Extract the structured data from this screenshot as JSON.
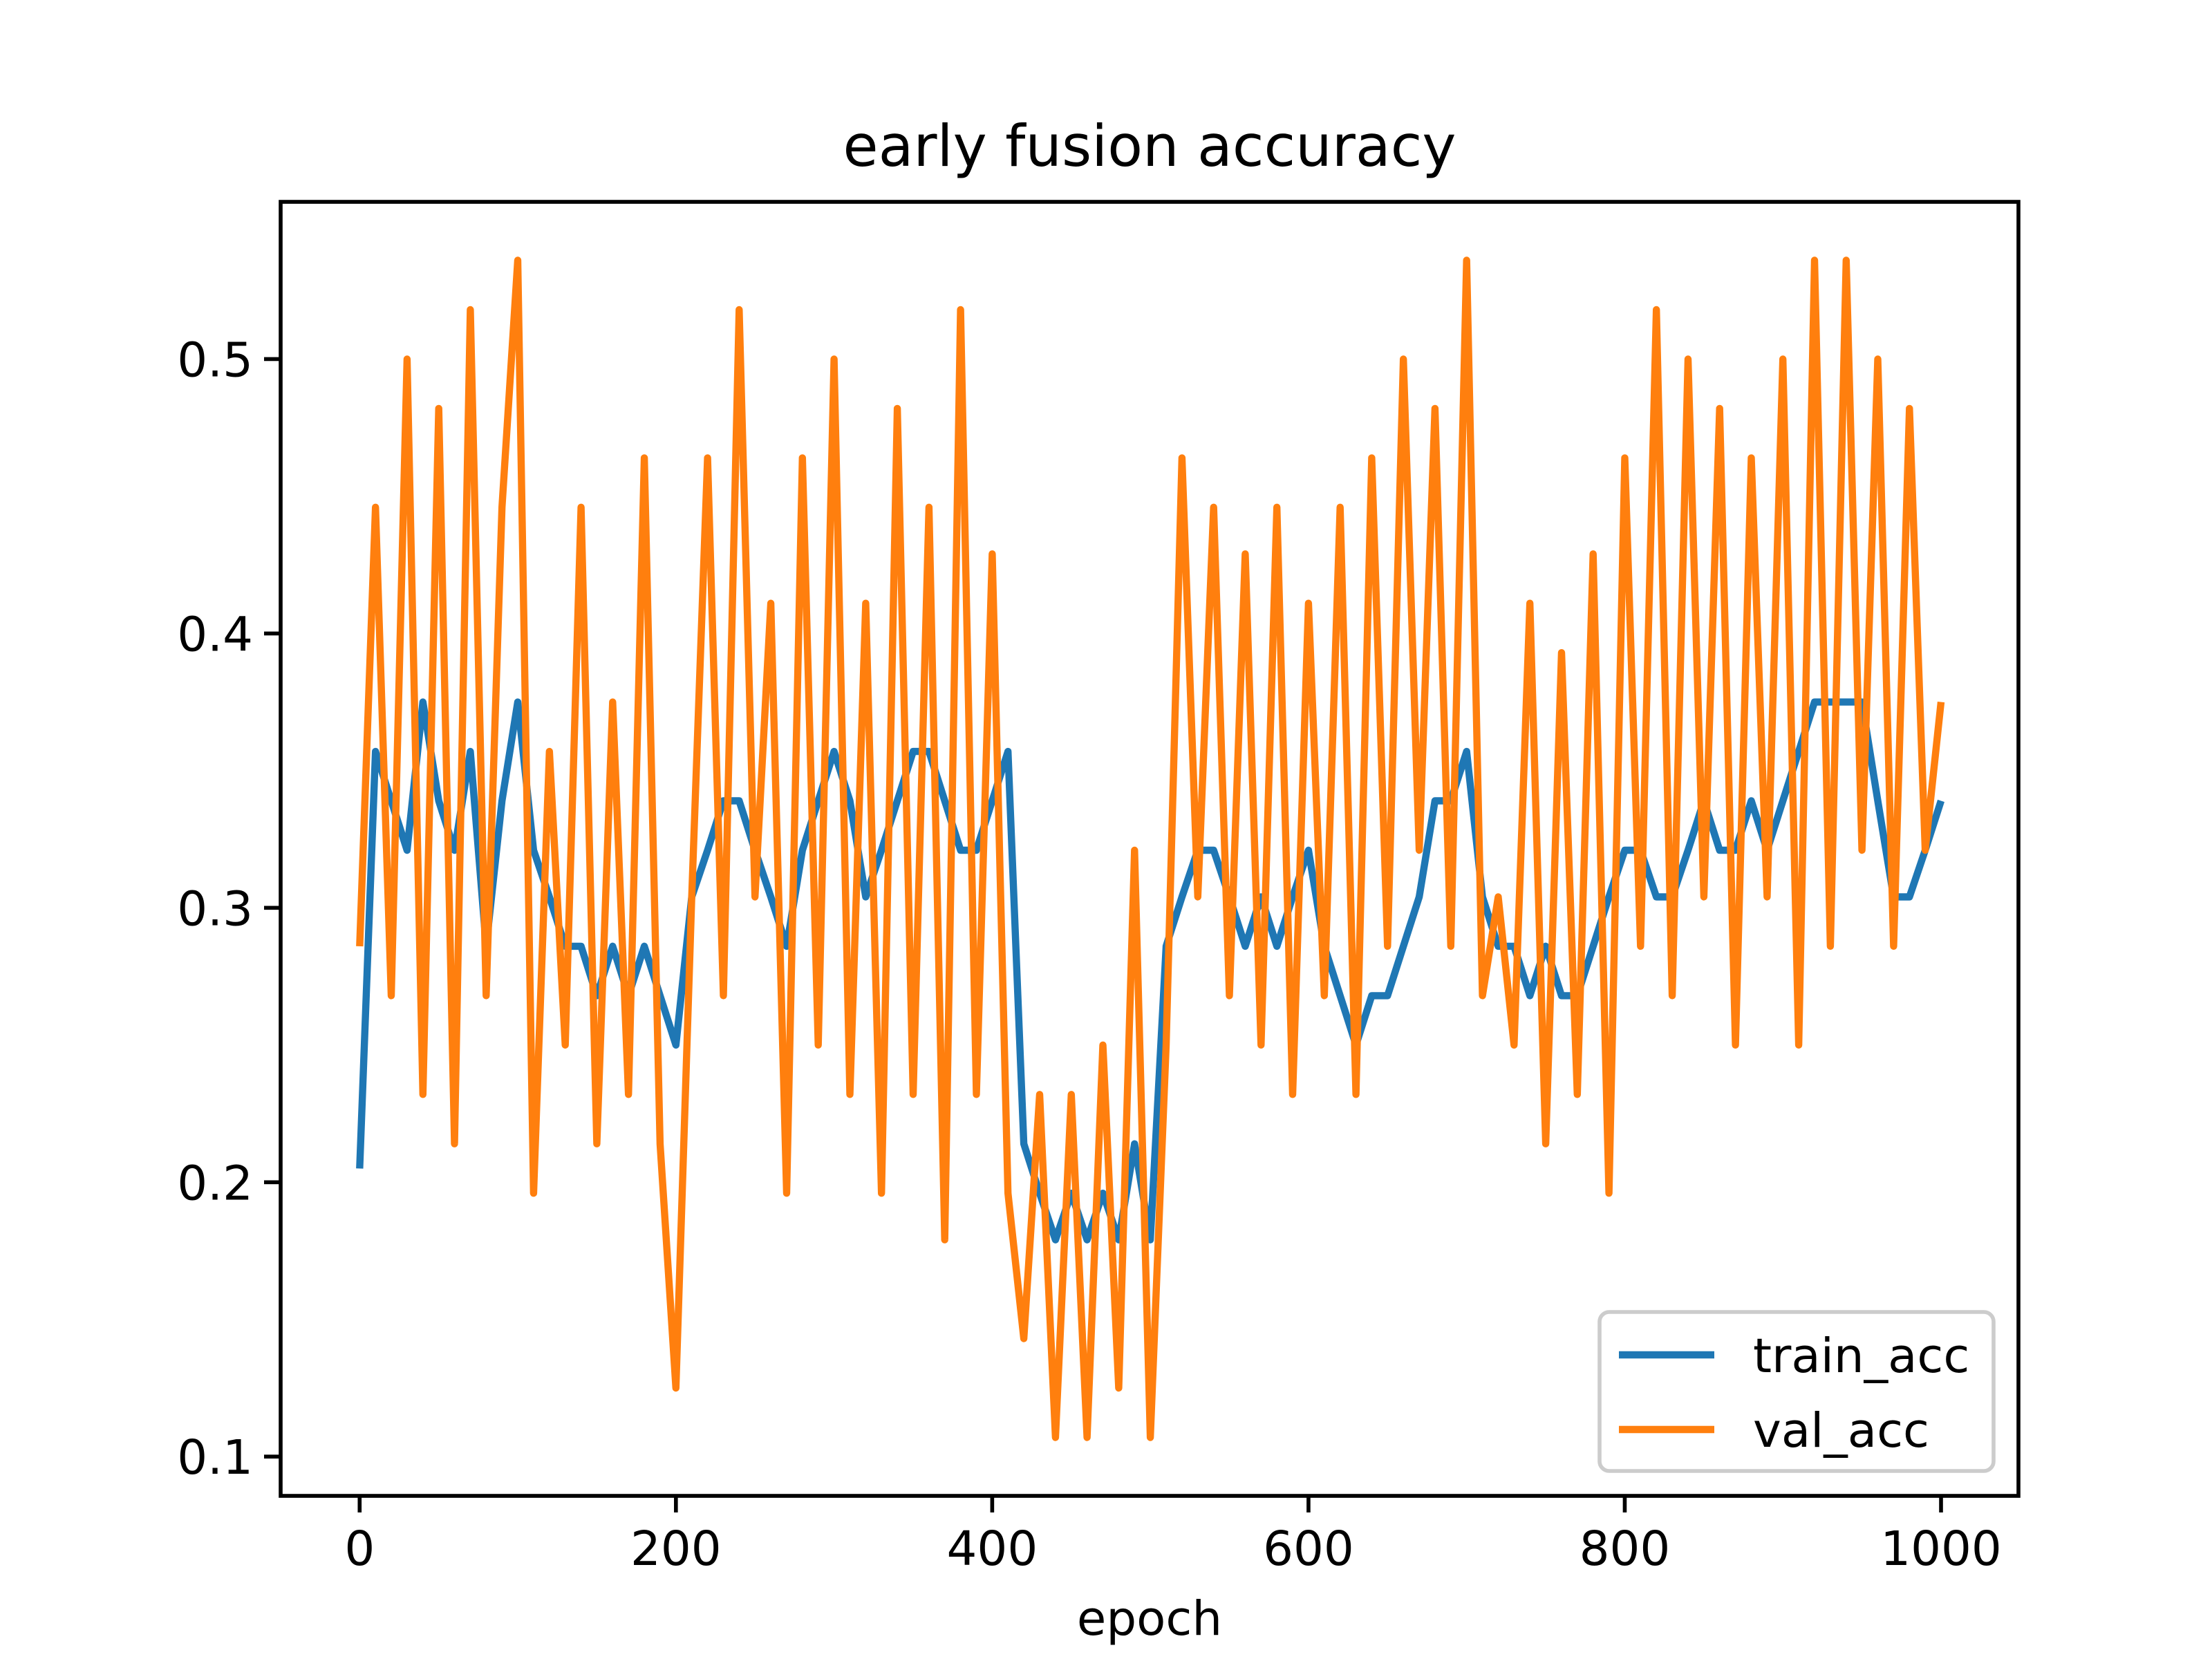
{
  "chart_data": {
    "type": "line",
    "title": "early fusion accuracy",
    "x_label": "epoch",
    "x": [
      0,
      10,
      20,
      30,
      40,
      50,
      60,
      70,
      80,
      90,
      100,
      110,
      120,
      130,
      140,
      150,
      160,
      170,
      180,
      190,
      200,
      210,
      220,
      230,
      240,
      250,
      260,
      270,
      280,
      290,
      300,
      310,
      320,
      330,
      340,
      350,
      360,
      370,
      380,
      390,
      400,
      410,
      420,
      430,
      440,
      450,
      460,
      470,
      480,
      490,
      500,
      510,
      520,
      530,
      540,
      550,
      560,
      570,
      580,
      590,
      600,
      610,
      620,
      630,
      640,
      650,
      660,
      670,
      680,
      690,
      700,
      710,
      720,
      730,
      740,
      750,
      760,
      770,
      780,
      790,
      800,
      810,
      820,
      830,
      840,
      850,
      860,
      870,
      880,
      890,
      900,
      910,
      920,
      930,
      940,
      950,
      960,
      970,
      980,
      990,
      1000
    ],
    "series": [
      {
        "name": "train_acc",
        "color": "#1f77b4",
        "values": [
          0.205,
          0.357,
          0.339,
          0.321,
          0.375,
          0.339,
          0.321,
          0.357,
          0.286,
          0.339,
          0.375,
          0.321,
          0.304,
          0.286,
          0.286,
          0.268,
          0.286,
          0.268,
          0.286,
          0.268,
          0.25,
          0.304,
          0.321,
          0.339,
          0.339,
          0.321,
          0.304,
          0.286,
          0.321,
          0.339,
          0.357,
          0.339,
          0.304,
          0.321,
          0.339,
          0.357,
          0.357,
          0.339,
          0.321,
          0.321,
          0.339,
          0.357,
          0.214,
          0.196,
          0.179,
          0.196,
          0.179,
          0.196,
          0.179,
          0.214,
          0.179,
          0.286,
          0.304,
          0.321,
          0.321,
          0.304,
          0.286,
          0.304,
          0.286,
          0.304,
          0.321,
          0.286,
          0.268,
          0.25,
          0.268,
          0.268,
          0.286,
          0.304,
          0.339,
          0.339,
          0.357,
          0.304,
          0.286,
          0.286,
          0.268,
          0.286,
          0.268,
          0.268,
          0.286,
          0.304,
          0.321,
          0.321,
          0.304,
          0.304,
          0.321,
          0.339,
          0.321,
          0.321,
          0.339,
          0.321,
          0.339,
          0.357,
          0.375,
          0.375,
          0.375,
          0.375,
          0.339,
          0.304,
          0.304,
          0.321,
          0.339
        ]
      },
      {
        "name": "val_acc",
        "color": "#ff7f0e",
        "values": [
          0.286,
          0.446,
          0.268,
          0.5,
          0.232,
          0.482,
          0.214,
          0.518,
          0.268,
          0.446,
          0.536,
          0.196,
          0.357,
          0.25,
          0.446,
          0.214,
          0.375,
          0.232,
          0.464,
          0.214,
          0.125,
          0.304,
          0.464,
          0.268,
          0.518,
          0.304,
          0.411,
          0.196,
          0.464,
          0.25,
          0.5,
          0.232,
          0.411,
          0.196,
          0.482,
          0.232,
          0.446,
          0.179,
          0.518,
          0.232,
          0.429,
          0.196,
          0.143,
          0.232,
          0.107,
          0.232,
          0.107,
          0.25,
          0.125,
          0.321,
          0.107,
          0.25,
          0.464,
          0.304,
          0.446,
          0.268,
          0.429,
          0.25,
          0.446,
          0.232,
          0.411,
          0.268,
          0.446,
          0.232,
          0.464,
          0.286,
          0.5,
          0.321,
          0.482,
          0.286,
          0.536,
          0.268,
          0.304,
          0.25,
          0.411,
          0.214,
          0.393,
          0.232,
          0.429,
          0.196,
          0.464,
          0.286,
          0.518,
          0.268,
          0.5,
          0.304,
          0.482,
          0.25,
          0.464,
          0.304,
          0.5,
          0.25,
          0.536,
          0.286,
          0.536,
          0.321,
          0.5,
          0.286,
          0.482,
          0.321,
          0.375
        ]
      }
    ],
    "xlim": [
      -49.95,
      1048.95
    ],
    "ylim": [
      0.0857,
      0.5573
    ],
    "xticks": [
      0,
      200,
      400,
      600,
      800,
      1000
    ],
    "yticks": [
      0.1,
      0.2,
      0.3,
      0.4,
      0.5
    ],
    "legend": "lower right",
    "grid": false
  }
}
